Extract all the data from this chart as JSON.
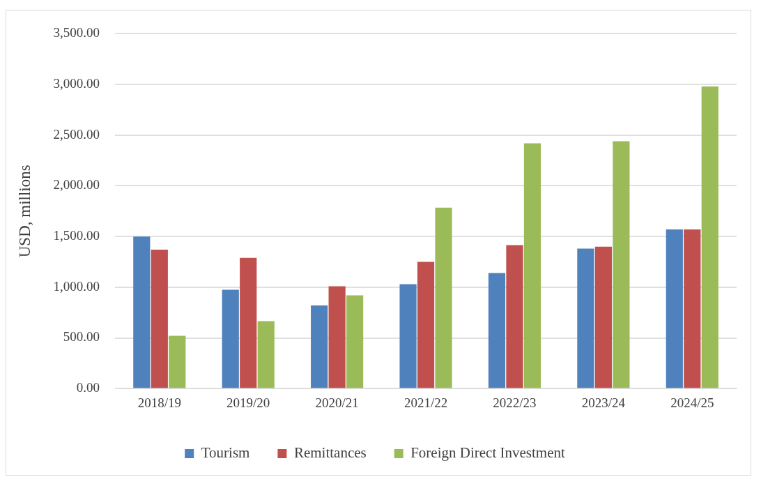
{
  "chart_data": {
    "type": "bar",
    "ylabel": "USD, millions",
    "categories": [
      "2018/19",
      "2019/20",
      "2020/21",
      "2021/22",
      "2022/23",
      "2023/24",
      "2024/25"
    ],
    "series": [
      {
        "name": "Tourism",
        "color": "#4f81bd",
        "values": [
          1500,
          975,
          820,
          1030,
          1140,
          1380,
          1570
        ]
      },
      {
        "name": "Remittances",
        "color": "#c0504d",
        "values": [
          1370,
          1290,
          1010,
          1250,
          1415,
          1400,
          1570
        ]
      },
      {
        "name": "Foreign Direct Investment",
        "color": "#9bbb59",
        "values": [
          520,
          665,
          920,
          1785,
          2420,
          2440,
          2980
        ]
      }
    ],
    "ylim": [
      0,
      3500
    ],
    "yticks": [
      {
        "value": 0,
        "label": "0.00"
      },
      {
        "value": 500,
        "label": "500.00"
      },
      {
        "value": 1000,
        "label": "1,000.00"
      },
      {
        "value": 1500,
        "label": "1,500.00"
      },
      {
        "value": 2000,
        "label": "2,000.00"
      },
      {
        "value": 2500,
        "label": "2,500.00"
      },
      {
        "value": 3000,
        "label": "3,000.00"
      },
      {
        "value": 3500,
        "label": "3,500.00"
      }
    ],
    "grid": "y",
    "legend": "bottom"
  }
}
